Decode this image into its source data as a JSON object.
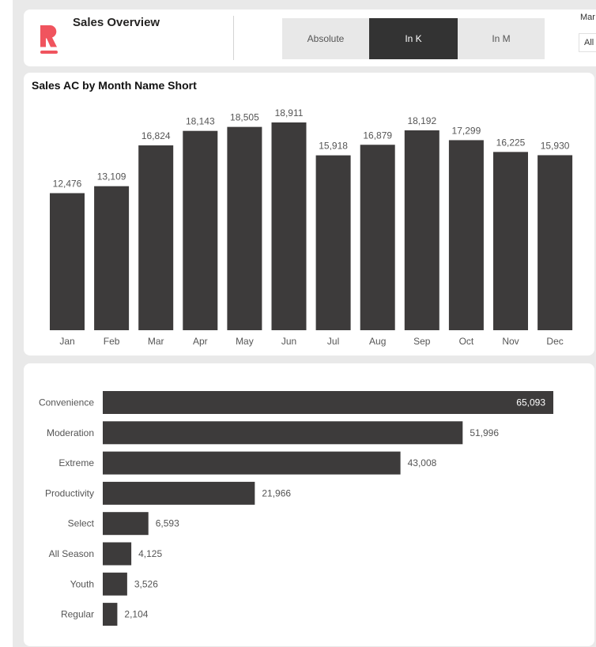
{
  "header": {
    "title": "Sales Overview",
    "toggle": {
      "options": [
        "Absolute",
        "In K",
        "In M"
      ],
      "selected": "In K"
    },
    "slicer": {
      "label": "Mar",
      "value": "All"
    }
  },
  "colors": {
    "bar": "#3d3b3b",
    "logo": "#f0545e",
    "active_toggle": "#333333"
  },
  "chart_data": [
    {
      "type": "bar",
      "title": "Sales AC by Month Name Short",
      "categories": [
        "Jan",
        "Feb",
        "Mar",
        "Apr",
        "May",
        "Jun",
        "Jul",
        "Aug",
        "Sep",
        "Oct",
        "Nov",
        "Dec"
      ],
      "values": [
        12476,
        13109,
        16824,
        18143,
        18505,
        18911,
        15918,
        16879,
        18192,
        17299,
        16225,
        15930
      ],
      "labels": [
        "12,476",
        "13,109",
        "16,824",
        "18,143",
        "18,505",
        "18,911",
        "15,918",
        "16,879",
        "18,192",
        "17,299",
        "16,225",
        "15,930"
      ],
      "ylim": [
        0,
        18911
      ],
      "grid": false
    },
    {
      "type": "bar",
      "orientation": "horizontal",
      "title": "",
      "categories": [
        "Convenience",
        "Moderation",
        "Extreme",
        "Productivity",
        "Select",
        "All Season",
        "Youth",
        "Regular"
      ],
      "values": [
        65093,
        51996,
        43008,
        21966,
        6593,
        4125,
        3526,
        2104
      ],
      "labels": [
        "65,093",
        "51,996",
        "43,008",
        "21,966",
        "6,593",
        "4,125",
        "3,526",
        "2,104"
      ],
      "grid": false
    }
  ]
}
